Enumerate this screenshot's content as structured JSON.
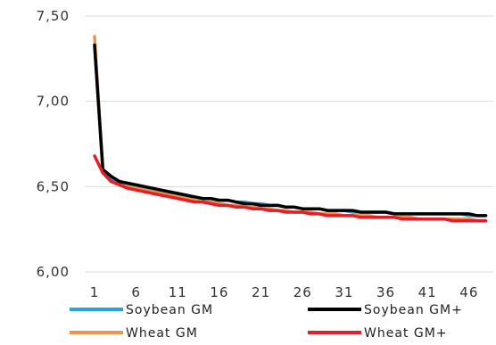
{
  "chart_data": {
    "type": "line",
    "title": "",
    "xlabel": "",
    "ylabel": "",
    "ylim": [
      6.0,
      7.5
    ],
    "y_ticks": [
      "6,00",
      "6,50",
      "7,00",
      "7,50"
    ],
    "x_ticks": [
      "1",
      "6",
      "11",
      "16",
      "21",
      "26",
      "31",
      "36",
      "41",
      "46"
    ],
    "x": [
      1,
      2,
      3,
      4,
      5,
      6,
      7,
      8,
      9,
      10,
      11,
      12,
      13,
      14,
      15,
      16,
      17,
      18,
      19,
      20,
      21,
      22,
      23,
      24,
      25,
      26,
      27,
      28,
      29,
      30,
      31,
      32,
      33,
      34,
      35,
      36,
      37,
      38,
      39,
      40,
      41,
      42,
      43,
      44,
      45,
      46,
      47,
      48
    ],
    "grid": "horizontal",
    "legend_position": "bottom",
    "series": [
      {
        "name": "Soybean GM",
        "color": "#29a3dc",
        "values": [
          7.33,
          6.6,
          6.55,
          6.52,
          6.51,
          6.5,
          6.49,
          6.48,
          6.47,
          6.46,
          6.45,
          6.44,
          6.44,
          6.43,
          6.43,
          6.42,
          6.42,
          6.41,
          6.41,
          6.4,
          6.4,
          6.39,
          6.39,
          6.38,
          6.38,
          6.37,
          6.37,
          6.37,
          6.36,
          6.36,
          6.36,
          6.35,
          6.35,
          6.35,
          6.35,
          6.35,
          6.34,
          6.34,
          6.34,
          6.34,
          6.34,
          6.34,
          6.34,
          6.34,
          6.34,
          6.33,
          6.33,
          6.33
        ]
      },
      {
        "name": "Soybean GM+",
        "color": "#000000",
        "values": [
          7.33,
          6.6,
          6.56,
          6.53,
          6.52,
          6.51,
          6.5,
          6.49,
          6.48,
          6.47,
          6.46,
          6.45,
          6.44,
          6.43,
          6.43,
          6.42,
          6.42,
          6.41,
          6.4,
          6.4,
          6.39,
          6.39,
          6.39,
          6.38,
          6.38,
          6.37,
          6.37,
          6.37,
          6.36,
          6.36,
          6.36,
          6.36,
          6.35,
          6.35,
          6.35,
          6.35,
          6.34,
          6.34,
          6.34,
          6.34,
          6.34,
          6.34,
          6.34,
          6.34,
          6.34,
          6.34,
          6.33,
          6.33
        ]
      },
      {
        "name": "Wheat GM",
        "color": "#f0924a",
        "values": [
          7.38,
          6.58,
          6.53,
          6.51,
          6.5,
          6.49,
          6.48,
          6.47,
          6.46,
          6.45,
          6.44,
          6.43,
          6.42,
          6.41,
          6.41,
          6.4,
          6.39,
          6.39,
          6.38,
          6.38,
          6.37,
          6.37,
          6.36,
          6.36,
          6.35,
          6.35,
          6.35,
          6.34,
          6.34,
          6.34,
          6.33,
          6.33,
          6.33,
          6.33,
          6.32,
          6.32,
          6.32,
          6.32,
          6.32,
          6.31,
          6.31,
          6.31,
          6.31,
          6.31,
          6.31,
          6.31,
          6.3,
          6.3
        ]
      },
      {
        "name": "Wheat GM+",
        "color": "#e41e26",
        "values": [
          6.68,
          6.58,
          6.53,
          6.51,
          6.49,
          6.48,
          6.47,
          6.46,
          6.45,
          6.44,
          6.43,
          6.42,
          6.41,
          6.41,
          6.4,
          6.39,
          6.39,
          6.38,
          6.38,
          6.37,
          6.37,
          6.36,
          6.36,
          6.35,
          6.35,
          6.35,
          6.34,
          6.34,
          6.33,
          6.33,
          6.33,
          6.33,
          6.32,
          6.32,
          6.32,
          6.32,
          6.32,
          6.31,
          6.31,
          6.31,
          6.31,
          6.31,
          6.31,
          6.3,
          6.3,
          6.3,
          6.3,
          6.3
        ]
      }
    ]
  }
}
